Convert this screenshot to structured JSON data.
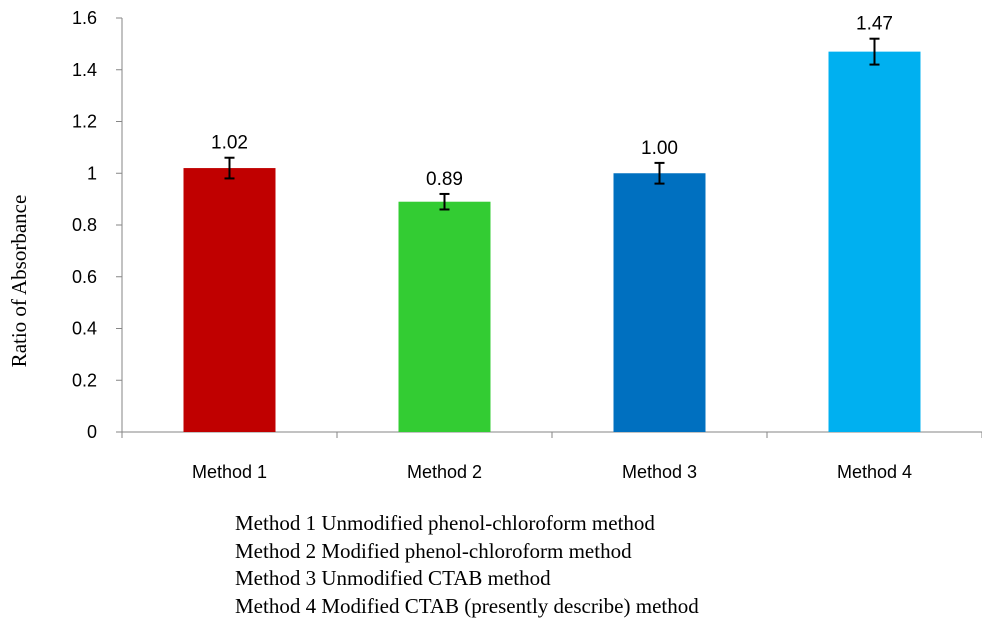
{
  "chart_data": {
    "type": "bar",
    "categories": [
      "Method 1",
      "Method 2",
      "Method 3",
      "Method 4"
    ],
    "values": [
      1.02,
      0.89,
      1.0,
      1.47
    ],
    "data_labels": [
      "1.02",
      "0.89",
      "1.00",
      "1.47"
    ],
    "error": [
      0.04,
      0.03,
      0.04,
      0.05
    ],
    "colors": [
      "#c00000",
      "#33cc33",
      "#0070c0",
      "#00b0f0"
    ],
    "ylabel": "Ratio of Absorbance",
    "ylim": [
      0,
      1.6
    ],
    "yticks": [
      0,
      0.2,
      0.4,
      0.6,
      0.8,
      1,
      1.2,
      1.4,
      1.6
    ],
    "ytick_labels": [
      "0",
      "0.2",
      "0.4",
      "0.6",
      "0.8",
      "1",
      "1.2",
      "1.4",
      "1.6"
    ],
    "grid": false,
    "notes": [
      "Method 1 Unmodified phenol-chloroform  method",
      "Method 2 Modified phenol-chloroform  method",
      "Method 3 Unmodified CTAB  method",
      "Method 4 Modified CTAB (presently describe) method"
    ]
  }
}
